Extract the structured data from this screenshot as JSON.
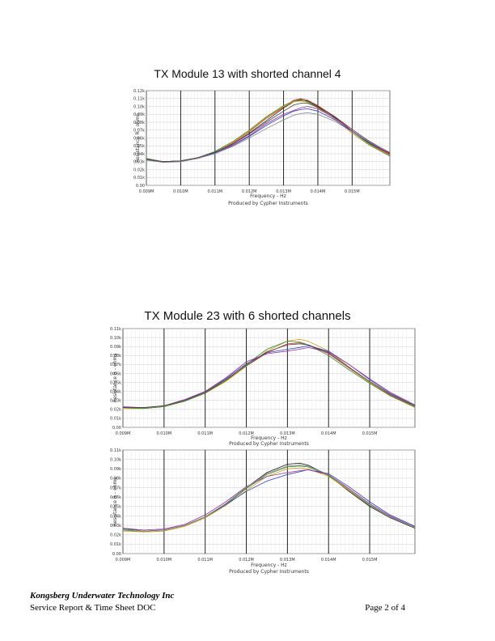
{
  "chart_data": [
    {
      "type": "line",
      "title": "TX Module 13 with shorted channel 4",
      "xlabel": "Frequency - Hz",
      "ylabel": "Resistance R - ohms",
      "credit": "Produced by Cypher Instruments",
      "x_ticks": [
        "0.009M",
        "0.010M",
        "0.011M",
        "0.012M",
        "0.013M",
        "0.014M",
        "0.015M"
      ],
      "y_ticks": [
        "0.00",
        "0.01k",
        "0.02k",
        "0.03k",
        "0.04k",
        "0.05k",
        "0.06k",
        "0.07k",
        "0.08k",
        "0.09k",
        "0.10k",
        "0.11k",
        "0.12k"
      ],
      "xlim": [
        0.009,
        0.0161
      ],
      "ylim": [
        0,
        0.12
      ],
      "x_unit": "MHz",
      "y_unit": "k-ohms",
      "x": [
        0.009,
        0.0095,
        0.01,
        0.0105,
        0.011,
        0.0115,
        0.012,
        0.0125,
        0.013,
        0.0133,
        0.0135,
        0.0137,
        0.014,
        0.0145,
        0.015,
        0.0155,
        0.0161
      ],
      "series": [
        {
          "color": "#1f1f1f",
          "values": [
            0.033,
            0.03,
            0.031,
            0.035,
            0.042,
            0.052,
            0.066,
            0.082,
            0.098,
            0.106,
            0.108,
            0.107,
            0.1,
            0.086,
            0.068,
            0.053,
            0.038
          ]
        },
        {
          "color": "#2e8b2e",
          "values": [
            0.034,
            0.03,
            0.031,
            0.035,
            0.043,
            0.055,
            0.07,
            0.087,
            0.101,
            0.107,
            0.109,
            0.106,
            0.099,
            0.084,
            0.066,
            0.051,
            0.037
          ]
        },
        {
          "color": "#cc3333",
          "values": [
            0.033,
            0.03,
            0.031,
            0.035,
            0.042,
            0.053,
            0.068,
            0.085,
            0.099,
            0.108,
            0.11,
            0.108,
            0.101,
            0.087,
            0.069,
            0.054,
            0.039
          ]
        },
        {
          "color": "#d4a017",
          "values": [
            0.033,
            0.03,
            0.031,
            0.035,
            0.042,
            0.054,
            0.069,
            0.086,
            0.1,
            0.106,
            0.107,
            0.105,
            0.098,
            0.084,
            0.066,
            0.052,
            0.038
          ]
        },
        {
          "color": "#3344bb",
          "values": [
            0.032,
            0.03,
            0.031,
            0.035,
            0.041,
            0.05,
            0.062,
            0.076,
            0.088,
            0.094,
            0.096,
            0.097,
            0.094,
            0.083,
            0.068,
            0.054,
            0.04
          ]
        },
        {
          "color": "#993399",
          "values": [
            0.033,
            0.03,
            0.031,
            0.035,
            0.042,
            0.051,
            0.063,
            0.078,
            0.09,
            0.095,
            0.098,
            0.1,
            0.097,
            0.085,
            0.069,
            0.055,
            0.04
          ]
        },
        {
          "color": "#444444",
          "values": [
            0.033,
            0.03,
            0.031,
            0.035,
            0.042,
            0.052,
            0.065,
            0.08,
            0.094,
            0.102,
            0.104,
            0.104,
            0.099,
            0.087,
            0.071,
            0.056,
            0.041
          ]
        },
        {
          "color": "#888888",
          "values": [
            0.032,
            0.029,
            0.03,
            0.034,
            0.04,
            0.049,
            0.06,
            0.072,
            0.083,
            0.089,
            0.091,
            0.092,
            0.09,
            0.081,
            0.068,
            0.055,
            0.042
          ]
        }
      ]
    },
    {
      "type": "line",
      "title": "TX Module 23 with 6 shorted channels",
      "xlabel": "Frequency - Hz",
      "ylabel": "Resistance R - ohms",
      "credit": "Produced by Cypher Instruments",
      "x_ticks": [
        "0.009M",
        "0.010M",
        "0.011M",
        "0.012M",
        "0.013M",
        "0.014M",
        "0.015M"
      ],
      "y_ticks": [
        "0.00",
        "0.01k",
        "0.02k",
        "0.03k",
        "0.04k",
        "0.05k",
        "0.06k",
        "0.07k",
        "0.08k",
        "0.09k",
        "0.10k",
        "0.11k"
      ],
      "xlim": [
        0.009,
        0.0161
      ],
      "ylim": [
        0,
        0.11
      ],
      "x_unit": "MHz",
      "y_unit": "k-ohms",
      "x": [
        0.009,
        0.0095,
        0.01,
        0.0105,
        0.011,
        0.0115,
        0.012,
        0.0125,
        0.013,
        0.0133,
        0.0135,
        0.014,
        0.0145,
        0.015,
        0.0155,
        0.0161
      ],
      "series": [
        {
          "color": "#cc3333",
          "values": [
            0.022,
            0.022,
            0.024,
            0.03,
            0.039,
            0.052,
            0.068,
            0.083,
            0.093,
            0.094,
            0.092,
            0.082,
            0.066,
            0.05,
            0.036,
            0.023
          ]
        },
        {
          "color": "#d4a017",
          "values": [
            0.021,
            0.021,
            0.023,
            0.029,
            0.038,
            0.051,
            0.068,
            0.085,
            0.096,
            0.098,
            0.096,
            0.085,
            0.067,
            0.05,
            0.035,
            0.022
          ]
        },
        {
          "color": "#2e8b2e",
          "values": [
            0.022,
            0.021,
            0.023,
            0.029,
            0.038,
            0.052,
            0.07,
            0.087,
            0.096,
            0.095,
            0.092,
            0.08,
            0.064,
            0.049,
            0.035,
            0.023
          ]
        },
        {
          "color": "#3344bb",
          "values": [
            0.022,
            0.022,
            0.024,
            0.03,
            0.04,
            0.054,
            0.071,
            0.083,
            0.087,
            0.089,
            0.091,
            0.085,
            0.07,
            0.053,
            0.038,
            0.024
          ]
        },
        {
          "color": "#993399",
          "values": [
            0.023,
            0.022,
            0.024,
            0.031,
            0.04,
            0.055,
            0.073,
            0.082,
            0.085,
            0.087,
            0.089,
            0.084,
            0.07,
            0.054,
            0.039,
            0.025
          ]
        },
        {
          "color": "#444444",
          "values": [
            0.022,
            0.022,
            0.024,
            0.03,
            0.039,
            0.053,
            0.069,
            0.084,
            0.092,
            0.093,
            0.092,
            0.083,
            0.067,
            0.051,
            0.037,
            0.024
          ]
        }
      ]
    },
    {
      "type": "line",
      "title": "",
      "xlabel": "Frequency - Hz",
      "ylabel": "Resistance R - ohms",
      "credit": "Produced by Cypher Instruments",
      "x_ticks": [
        "0.009M",
        "0.010M",
        "0.011M",
        "0.012M",
        "0.013M",
        "0.014M",
        "0.015M"
      ],
      "y_ticks": [
        "0.00",
        "0.01k",
        "0.02k",
        "0.03k",
        "0.04k",
        "0.05k",
        "0.06k",
        "0.07k",
        "0.08k",
        "0.09k",
        "0.10k",
        "0.11k"
      ],
      "xlim": [
        0.009,
        0.0161
      ],
      "ylim": [
        0,
        0.11
      ],
      "x_unit": "MHz",
      "y_unit": "k-ohms",
      "x": [
        0.009,
        0.0095,
        0.01,
        0.0105,
        0.011,
        0.0115,
        0.012,
        0.0125,
        0.013,
        0.0133,
        0.0135,
        0.014,
        0.0145,
        0.015,
        0.0155,
        0.0161
      ],
      "series": [
        {
          "color": "#1f1f1f",
          "values": [
            0.027,
            0.024,
            0.025,
            0.03,
            0.039,
            0.053,
            0.07,
            0.086,
            0.095,
            0.096,
            0.094,
            0.083,
            0.066,
            0.05,
            0.038,
            0.027
          ]
        },
        {
          "color": "#2e8b2e",
          "values": [
            0.025,
            0.023,
            0.024,
            0.029,
            0.038,
            0.052,
            0.069,
            0.084,
            0.092,
            0.093,
            0.092,
            0.083,
            0.067,
            0.051,
            0.039,
            0.028
          ]
        },
        {
          "color": "#d4a017",
          "values": [
            0.024,
            0.023,
            0.024,
            0.029,
            0.038,
            0.051,
            0.067,
            0.082,
            0.09,
            0.091,
            0.09,
            0.082,
            0.067,
            0.052,
            0.039,
            0.028
          ]
        },
        {
          "color": "#3344bb",
          "values": [
            0.026,
            0.024,
            0.025,
            0.03,
            0.039,
            0.052,
            0.066,
            0.077,
            0.084,
            0.087,
            0.089,
            0.085,
            0.071,
            0.055,
            0.041,
            0.029
          ]
        },
        {
          "color": "#993399",
          "values": [
            0.027,
            0.025,
            0.026,
            0.031,
            0.041,
            0.055,
            0.071,
            0.082,
            0.086,
            0.088,
            0.089,
            0.084,
            0.069,
            0.053,
            0.04,
            0.028
          ]
        },
        {
          "color": "#888888",
          "values": [
            0.026,
            0.024,
            0.025,
            0.03,
            0.039,
            0.053,
            0.07,
            0.085,
            0.093,
            0.094,
            0.093,
            0.084,
            0.068,
            0.052,
            0.039,
            0.028
          ]
        }
      ]
    }
  ],
  "footer": {
    "company": "Kongsberg Underwater Technology Inc",
    "document": "Service Report & Time Sheet DOC",
    "page": "Page 2 of 4"
  }
}
